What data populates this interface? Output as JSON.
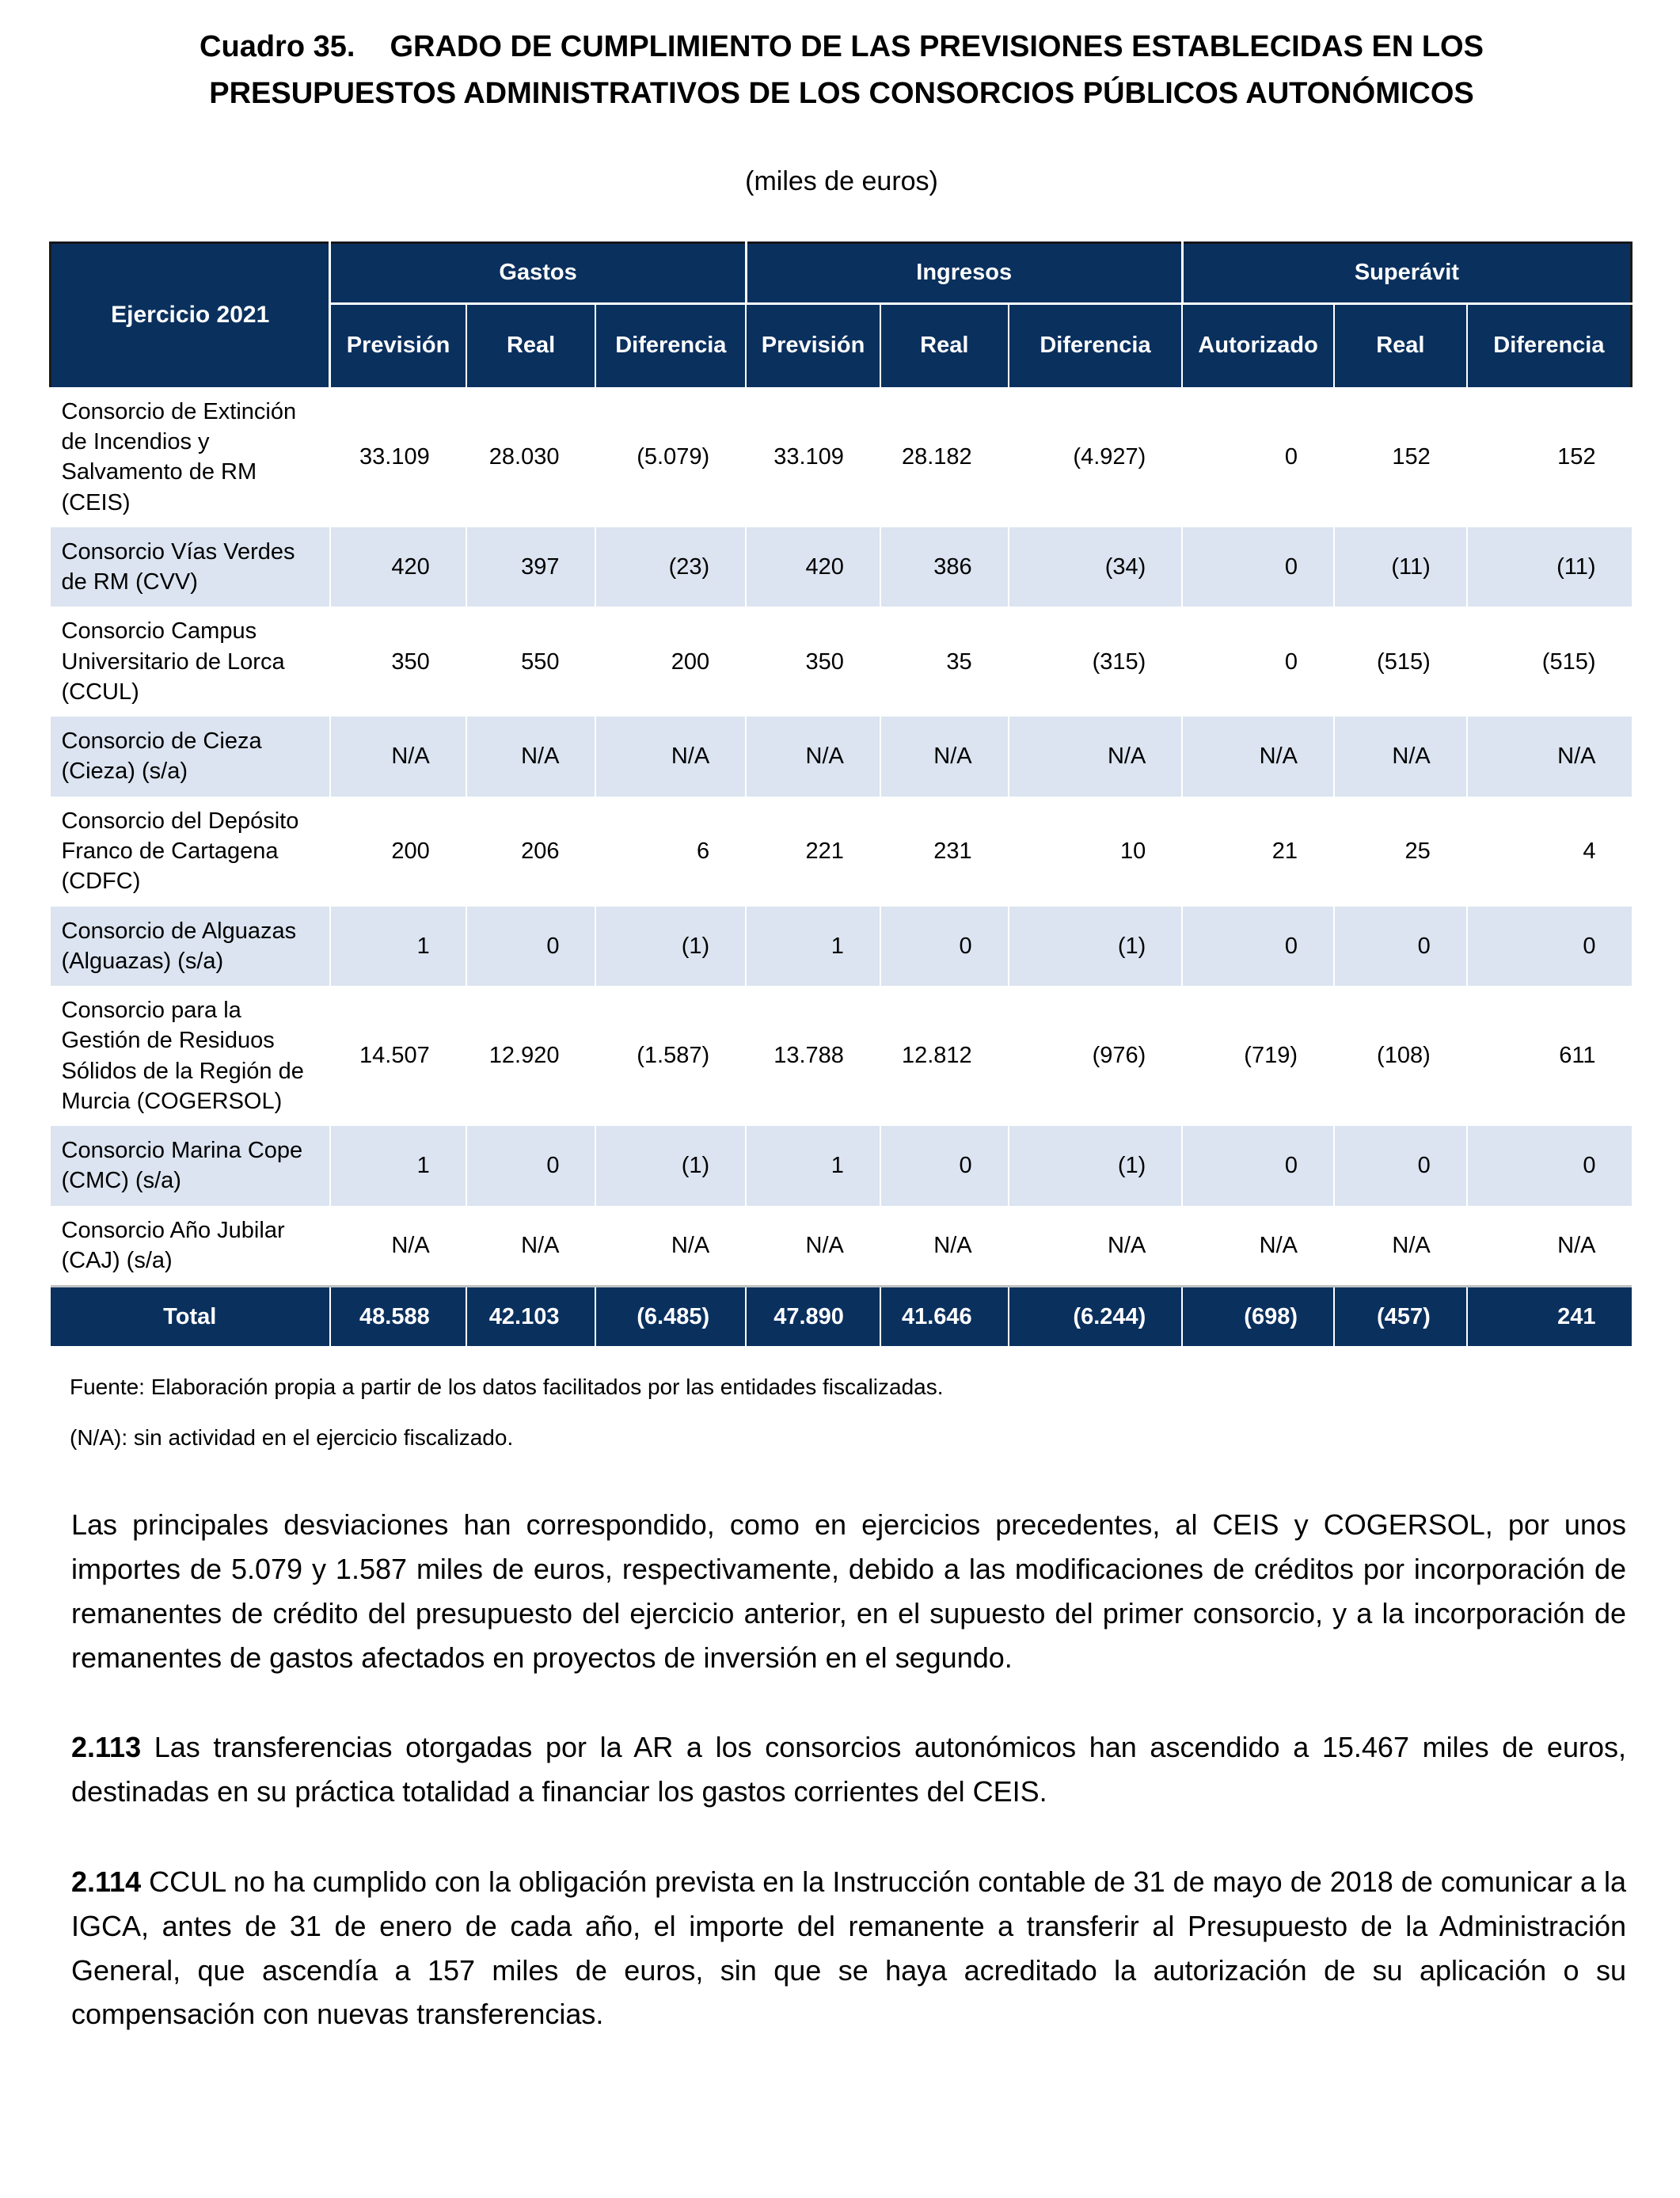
{
  "title": {
    "label": "Cuadro 35.",
    "text": "GRADO DE CUMPLIMIENTO DE LAS PREVISIONES ESTABLECIDAS EN LOS PRESUPUESTOS ADMINISTRATIVOS DE LOS CONSORCIOS PÚBLICOS AUTONÓMICOS"
  },
  "subtitle": "(miles de euros)",
  "table": {
    "corner_header": "Ejercicio 2021",
    "groups": [
      {
        "label": "Gastos",
        "columns": [
          "Previsión",
          "Real",
          "Diferencia"
        ]
      },
      {
        "label": "Ingresos",
        "columns": [
          "Previsión",
          "Real",
          "Diferencia"
        ]
      },
      {
        "label": "Superávit",
        "columns": [
          "Autorizado",
          "Real",
          "Diferencia"
        ]
      }
    ],
    "rows": [
      {
        "name": "Consorcio de Extinción de Incendios y Salvamento de RM (CEIS)",
        "values": [
          "33.109",
          "28.030",
          "(5.079)",
          "33.109",
          "28.182",
          "(4.927)",
          "0",
          "152",
          "152"
        ]
      },
      {
        "name": "Consorcio Vías Verdes de RM (CVV)",
        "values": [
          "420",
          "397",
          "(23)",
          "420",
          "386",
          "(34)",
          "0",
          "(11)",
          "(11)"
        ]
      },
      {
        "name": "Consorcio Campus Universitario de Lorca (CCUL)",
        "values": [
          "350",
          "550",
          "200",
          "350",
          "35",
          "(315)",
          "0",
          "(515)",
          "(515)"
        ]
      },
      {
        "name": "Consorcio de Cieza (Cieza) (s/a)",
        "values": [
          "N/A",
          "N/A",
          "N/A",
          "N/A",
          "N/A",
          "N/A",
          "N/A",
          "N/A",
          "N/A"
        ]
      },
      {
        "name": "Consorcio del Depósito Franco de Cartagena (CDFC)",
        "values": [
          "200",
          "206",
          "6",
          "221",
          "231",
          "10",
          "21",
          "25",
          "4"
        ]
      },
      {
        "name": "Consorcio de Alguazas (Alguazas) (s/a)",
        "values": [
          "1",
          "0",
          "(1)",
          "1",
          "0",
          "(1)",
          "0",
          "0",
          "0"
        ]
      },
      {
        "name": "Consorcio para la Gestión de Residuos Sólidos de la Región de Murcia (COGERSOL)",
        "values": [
          "14.507",
          "12.920",
          "(1.587)",
          "13.788",
          "12.812",
          "(976)",
          "(719)",
          "(108)",
          "611"
        ]
      },
      {
        "name": "Consorcio Marina Cope (CMC) (s/a)",
        "values": [
          "1",
          "0",
          "(1)",
          "1",
          "0",
          "(1)",
          "0",
          "0",
          "0"
        ]
      },
      {
        "name": "Consorcio Año Jubilar (CAJ) (s/a)",
        "values": [
          "N/A",
          "N/A",
          "N/A",
          "N/A",
          "N/A",
          "N/A",
          "N/A",
          "N/A",
          "N/A"
        ]
      }
    ],
    "total": {
      "label": "Total",
      "values": [
        "48.588",
        "42.103",
        "(6.485)",
        "47.890",
        "41.646",
        "(6.244)",
        "(698)",
        "(457)",
        "241"
      ]
    }
  },
  "notes": [
    "Fuente: Elaboración propia a partir de los datos facilitados por las entidades fiscalizadas.",
    "(N/A): sin actividad en el ejercicio fiscalizado."
  ],
  "paragraphs": [
    {
      "number": "",
      "text": "Las principales desviaciones han correspondido, como en ejercicios precedentes, al CEIS y COGERSOL, por unos importes de 5.079 y 1.587 miles de euros, respectivamente, debido a las modificaciones de créditos por incorporación de remanentes de crédito del presupuesto del ejercicio anterior, en el supuesto del primer consorcio, y a la incorporación de remanentes de gastos afectados en proyectos de inversión en el segundo."
    },
    {
      "number": "2.113",
      "text": "Las transferencias otorgadas por la AR a los consorcios autonómicos han ascendido a 15.467 miles de euros, destinadas en su práctica totalidad a financiar los gastos corrientes del CEIS."
    },
    {
      "number": "2.114",
      "text": "CCUL no ha cumplido con la obligación prevista en la Instrucción contable de 31 de mayo de 2018 de comunicar a la IGCA, antes de 31 de enero de cada año, el importe del remanente a transferir al Presupuesto de la Administración General, que ascendía a 157 miles de euros, sin que se haya acreditado la autorización de su aplicación o su compensación con nuevas transferencias."
    }
  ],
  "colors": {
    "header_bg": "#0a305e",
    "row_alt_bg": "#dbe4f0",
    "header_text": "#ffffff",
    "body_text": "#000000"
  }
}
